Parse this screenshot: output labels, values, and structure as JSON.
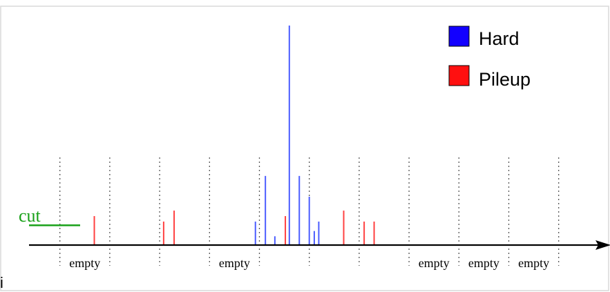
{
  "colors": {
    "hard": "#4a5cff",
    "pileup": "#ff4040",
    "legend_hard": "#1200ff",
    "legend_pileup": "#ff1010",
    "cut": "#17a017",
    "axis": "#000000",
    "divider": "#555555"
  },
  "legend": {
    "hard_label": "Hard",
    "pileup_label": "Pileup"
  },
  "cut": {
    "label": "cut",
    "level": 0.09
  },
  "empty_label": "empty",
  "stray_glyph": "i",
  "chart_data": {
    "type": "bar",
    "title": "",
    "xlabel": "",
    "ylabel": "",
    "ylim": [
      0,
      1
    ],
    "xlim": [
      0,
      11.3
    ],
    "dividers": [
      1,
      2,
      3,
      4,
      5,
      6,
      7,
      8,
      9,
      10,
      11
    ],
    "empty_bins": [
      1,
      4,
      8,
      9,
      10
    ],
    "series": [
      {
        "name": "Hard",
        "points": [
          {
            "x": 4.92,
            "y": 0.107
          },
          {
            "x": 5.12,
            "y": 0.315
          },
          {
            "x": 5.31,
            "y": 0.04
          },
          {
            "x": 5.6,
            "y": 1.0
          },
          {
            "x": 5.8,
            "y": 0.315
          },
          {
            "x": 6.0,
            "y": 0.22
          },
          {
            "x": 6.1,
            "y": 0.064
          },
          {
            "x": 6.19,
            "y": 0.107
          }
        ]
      },
      {
        "name": "Pileup",
        "points": [
          {
            "x": 1.69,
            "y": 0.132
          },
          {
            "x": 3.08,
            "y": 0.107
          },
          {
            "x": 3.29,
            "y": 0.157
          },
          {
            "x": 5.52,
            "y": 0.132
          },
          {
            "x": 6.69,
            "y": 0.157
          },
          {
            "x": 7.1,
            "y": 0.107
          },
          {
            "x": 7.3,
            "y": 0.107
          }
        ]
      }
    ]
  }
}
